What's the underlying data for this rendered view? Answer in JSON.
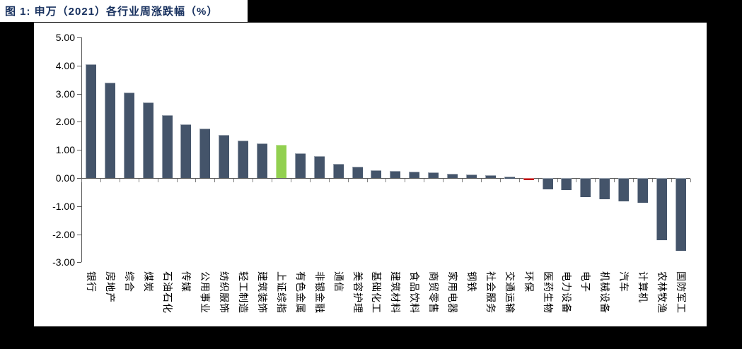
{
  "figure": {
    "title": "图 1: 申万（2021）各行业周涨跌幅（%）",
    "title_color": "#17305E"
  },
  "chart_data": {
    "type": "bar",
    "title": "申万（2021）各行业周涨跌幅（%）",
    "categories": [
      "银行",
      "房地产",
      "综合",
      "煤炭",
      "石油石化",
      "传媒",
      "公用事业",
      "纺织服饰",
      "轻工制造",
      "建筑装饰",
      "上证综指",
      "有色金属",
      "非银金融",
      "通信",
      "美容护理",
      "基础化工",
      "建筑材料",
      "食品饮料",
      "商贸零售",
      "家用电器",
      "钢铁",
      "社会服务",
      "交通运输",
      "环保",
      "医药生物",
      "电力设备",
      "电子",
      "机械设备",
      "汽车",
      "计算机",
      "农林牧渔",
      "国防军工"
    ],
    "values": [
      4.05,
      3.39,
      3.03,
      2.7,
      2.24,
      1.92,
      1.75,
      1.54,
      1.32,
      1.22,
      1.17,
      0.89,
      0.77,
      0.51,
      0.4,
      0.28,
      0.24,
      0.22,
      0.2,
      0.15,
      0.12,
      0.09,
      0.05,
      -0.03,
      -0.4,
      -0.42,
      -0.69,
      -0.76,
      -0.83,
      -0.88,
      -2.2,
      -2.58
    ],
    "bar_color_default": "#44546A",
    "bar_color_overrides": {
      "10": "#92D050",
      "23": "#C00000"
    },
    "highlighted_categories": {
      "上证综指": "#92D050",
      "环保": "#C00000"
    },
    "xlabel": "",
    "ylabel": "",
    "ylim": [
      -3.0,
      5.0
    ],
    "ytick_labels": [
      "5.00",
      "4.00",
      "3.00",
      "2.00",
      "1.00",
      "0.00",
      "-1.00",
      "-2.00",
      "-3.00"
    ],
    "ytick_values": [
      5,
      4,
      3,
      2,
      1,
      0,
      -1,
      -2,
      -3
    ],
    "grid": false,
    "legend": null,
    "category_label_rotation_deg": 90
  }
}
